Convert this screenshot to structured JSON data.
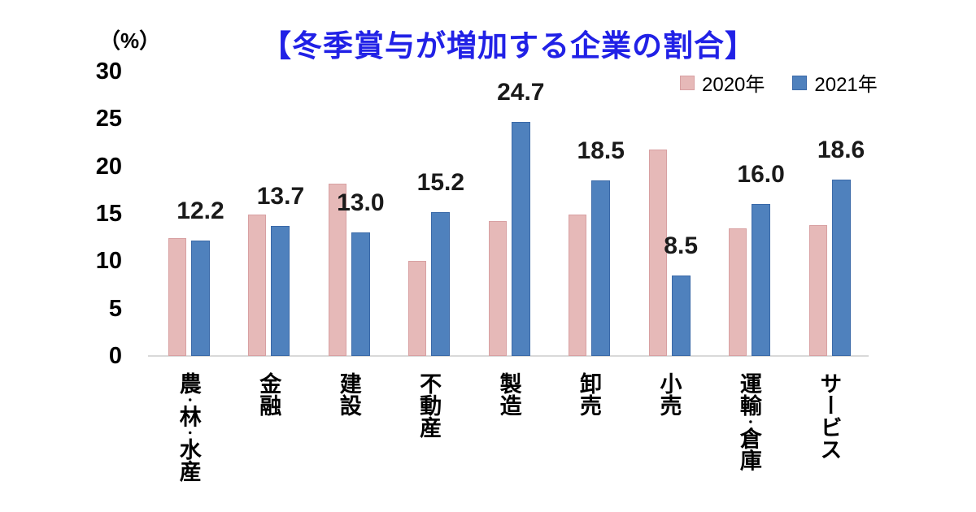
{
  "chart_data": {
    "type": "bar",
    "title": "【冬季賞与が増加する企業の割合】",
    "unit_label": "（%）",
    "categories": [
      "農・林・水産",
      "金融",
      "建設",
      "不動産",
      "製造",
      "卸売",
      "小売",
      "運輸・倉庫",
      "サービス"
    ],
    "series": [
      {
        "name": "2020年",
        "fill": "#e6b9b8",
        "border": "#d8a0a2",
        "values": [
          12.4,
          14.9,
          18.2,
          10.0,
          14.2,
          14.9,
          21.8,
          13.5,
          13.8
        ],
        "labeled": false
      },
      {
        "name": "2021年",
        "fill": "#4f81bd",
        "border": "#3a69a8",
        "values": [
          12.2,
          13.7,
          13.0,
          15.2,
          24.7,
          18.5,
          8.5,
          16.0,
          18.6
        ],
        "labeled": true
      }
    ],
    "data_labels": [
      "12.2",
      "13.7",
      "13.0",
      "15.2",
      "24.7",
      "18.5",
      "8.5",
      "16.0",
      "18.6"
    ],
    "ylim": [
      0,
      30
    ],
    "yticks": [
      0,
      5,
      10,
      15,
      20,
      25,
      30
    ],
    "grid": false,
    "legend_position": "top-right",
    "colors": {
      "title": "#2121e6",
      "axis_line": "#d9d9d9",
      "text": "#000000",
      "data_label_text": "#1a1a1a"
    }
  }
}
